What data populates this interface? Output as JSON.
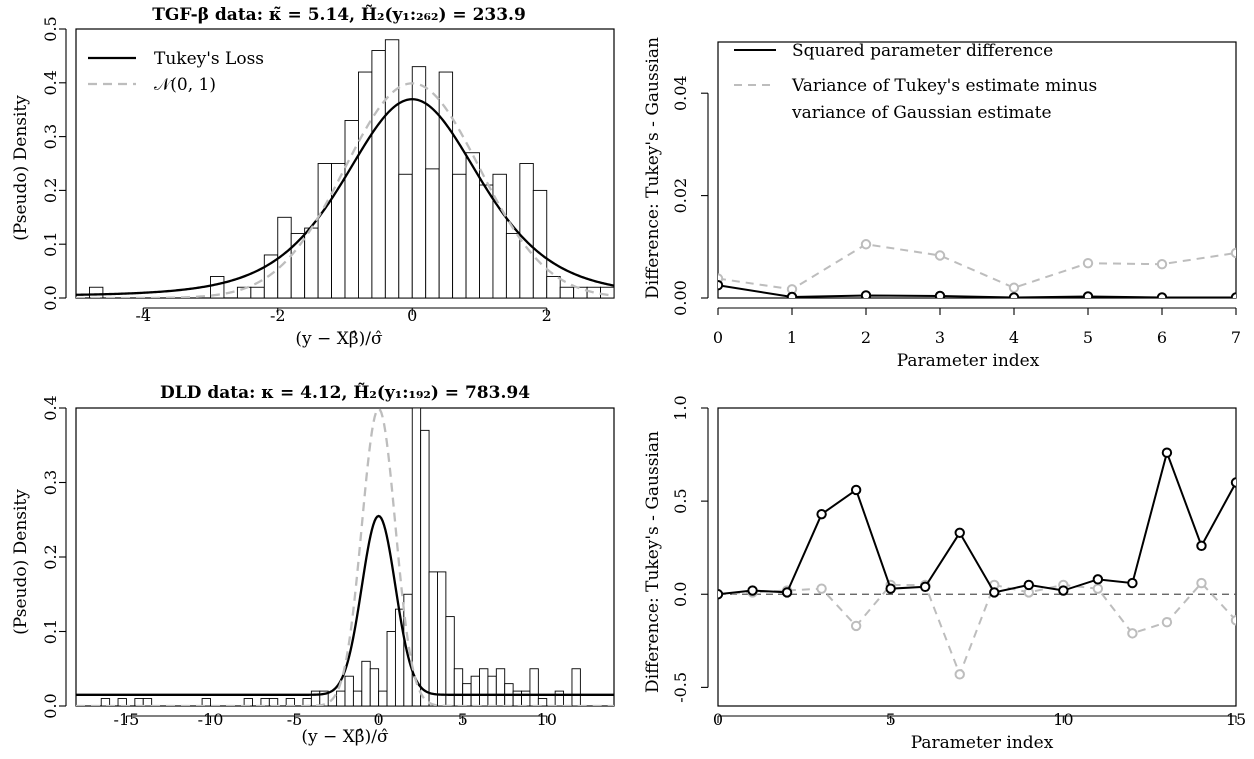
{
  "colors": {
    "black": "#000000",
    "gray": "#bdbdbd",
    "dashed_ref": "#555555"
  },
  "chart_data": [
    {
      "type": "histogram",
      "title": "TGF-β data:  κ̃ = 5.14,  H̃₂(y₁:₂₆₂) = 233.9",
      "xlabel": "(y − Xβ̂)/σ̂",
      "ylabel": "(Pseudo) Density",
      "xlim": [
        -5,
        3
      ],
      "ylim": [
        0,
        0.5
      ],
      "xticks": [
        -4,
        -2,
        0,
        2
      ],
      "yticks": [
        0.0,
        0.1,
        0.2,
        0.3,
        0.4,
        0.5
      ],
      "bin_start": -4.8,
      "bin_width": 0.2,
      "bin_density": [
        0.02,
        0,
        0,
        0,
        0,
        0,
        0,
        0,
        0,
        0.04,
        0,
        0.02,
        0.02,
        0.08,
        0.15,
        0.12,
        0.13,
        0.25,
        0.25,
        0.33,
        0.42,
        0.46,
        0.48,
        0.23,
        0.43,
        0.24,
        0.42,
        0.23,
        0.27,
        0.21,
        0.23,
        0.12,
        0.25,
        0.2,
        0.04,
        0.02,
        0.02,
        0.02,
        0.02
      ],
      "curves": [
        {
          "name": "Tukey's Loss",
          "kind": "t_loc_scale",
          "df": 5.14,
          "scale": 1.04,
          "floor": 0.004,
          "style": "solid"
        },
        {
          "name": "𝒩(0, 1)",
          "kind": "normal",
          "sd": 1,
          "style": "dashed"
        }
      ],
      "legend_position": "top-left"
    },
    {
      "type": "line",
      "xlabel": "Parameter index",
      "ylabel": "Difference: Tukey's - Gaussian",
      "xlim": [
        0,
        7
      ],
      "ylim": [
        0,
        0.05
      ],
      "xticks": [
        0,
        1,
        2,
        3,
        4,
        5,
        6,
        7
      ],
      "yticks": [
        0.0,
        0.02,
        0.04
      ],
      "ytick_labels": [
        "0.00",
        "0.02",
        "0.04"
      ],
      "x": [
        0,
        1,
        2,
        3,
        4,
        5,
        6,
        7
      ],
      "series": [
        {
          "name": "Squared parameter difference",
          "values": [
            0.0025,
            0.0002,
            0.0005,
            0.0004,
            0.0001,
            0.0003,
            0.0001,
            0.0001
          ],
          "style": "solid",
          "color": "#000000"
        },
        {
          "name": "Variance of Tukey's estimate minus variance of Gaussian estimate",
          "values": [
            0.0038,
            0.0017,
            0.0105,
            0.0083,
            0.002,
            0.0068,
            0.0066,
            0.0088
          ],
          "style": "dashed",
          "color": "#bdbdbd"
        }
      ],
      "legend_lines": [
        "Squared parameter difference",
        "Variance of Tukey's estimate minus",
        "variance of Gaussian estimate"
      ],
      "legend_position": "top-left"
    },
    {
      "type": "histogram",
      "title": "DLD data:  κ = 4.12,  H̃₂(y₁:₁₉₂) = 783.94",
      "xlabel": "(y − Xβ̂)/σ̂",
      "ylabel": "(Pseudo) Density",
      "xlim": [
        -18,
        14
      ],
      "ylim": [
        0,
        0.4
      ],
      "xticks": [
        -15,
        -10,
        -5,
        0,
        5,
        10
      ],
      "yticks": [
        0.0,
        0.1,
        0.2,
        0.3,
        0.4
      ],
      "bin_start": -16.5,
      "bin_width": 0.5,
      "bin_density": [
        0.01,
        0,
        0.01,
        0,
        0.01,
        0.01,
        0,
        0,
        0,
        0,
        0,
        0,
        0.01,
        0,
        0,
        0,
        0,
        0.01,
        0,
        0.01,
        0.01,
        0,
        0.01,
        0,
        0.01,
        0.02,
        0.02,
        0,
        0.02,
        0.04,
        0.02,
        0.06,
        0.05,
        0.02,
        0.1,
        0.13,
        0.15,
        0.4,
        0.37,
        0.18,
        0.18,
        0.12,
        0.05,
        0.03,
        0.04,
        0.05,
        0.04,
        0.05,
        0.03,
        0.02,
        0.02,
        0.05,
        0.01,
        0,
        0.02,
        0,
        0.05,
        0,
        0,
        0,
        0,
        0,
        0,
        0.01,
        0,
        0.01,
        0,
        0,
        0.01,
        0,
        0.01,
        0,
        0.01,
        0,
        0,
        0.01
      ],
      "curves": [
        {
          "name": "Tukey's Loss",
          "kind": "normal_floor",
          "sd": 1.0,
          "peak": 0.255,
          "floor": 0.015,
          "style": "solid"
        },
        {
          "name": "𝒩(0, 1)",
          "kind": "normal",
          "sd": 1,
          "style": "dashed"
        }
      ]
    },
    {
      "type": "line",
      "xlabel": "Parameter index",
      "ylabel": "Difference: Tukey's - Gaussian",
      "xlim": [
        0,
        15
      ],
      "ylim": [
        -0.6,
        1.0
      ],
      "xticks": [
        0,
        5,
        10,
        15
      ],
      "yticks": [
        -0.5,
        0.0,
        0.5,
        1.0
      ],
      "ytick_labels": [
        "-0.5",
        "0.0",
        "0.5",
        "1.0"
      ],
      "x": [
        0,
        1,
        2,
        3,
        4,
        5,
        6,
        7,
        8,
        9,
        10,
        11,
        12,
        13,
        14,
        15
      ],
      "series": [
        {
          "name": "Squared parameter difference",
          "values": [
            0.0,
            0.02,
            0.01,
            0.43,
            0.56,
            0.03,
            0.04,
            0.33,
            0.01,
            0.05,
            0.02,
            0.08,
            0.06,
            0.76,
            0.26,
            0.6
          ],
          "style": "solid",
          "color": "#000000"
        },
        {
          "name": "Variance of Tukey's estimate minus variance of Gaussian estimate",
          "values": [
            0.0,
            0.01,
            0.02,
            0.03,
            -0.17,
            0.05,
            0.05,
            -0.43,
            0.05,
            0.01,
            0.05,
            0.03,
            -0.21,
            -0.15,
            0.06,
            -0.14
          ],
          "style": "dashed",
          "color": "#bdbdbd"
        }
      ],
      "hline": 0
    }
  ]
}
